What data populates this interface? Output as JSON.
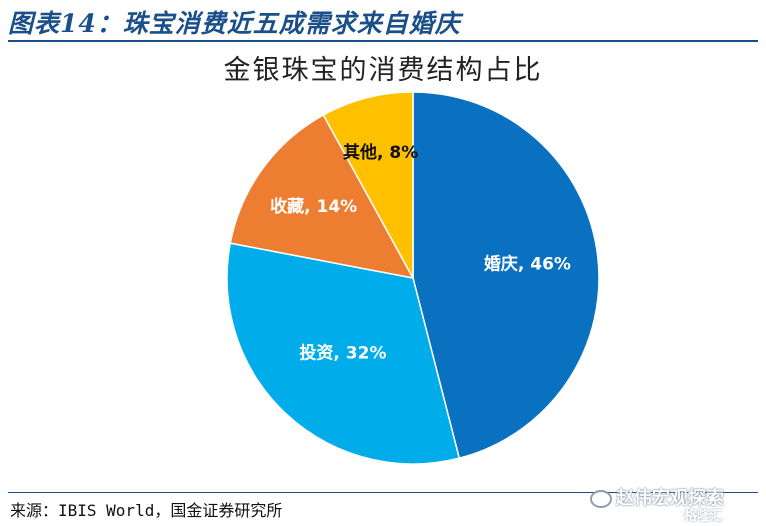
{
  "figure": {
    "title": "图表14：珠宝消费近五成需求来自婚庆",
    "source": "来源：IBIS World，国金证券研究所"
  },
  "watermark": {
    "text": "赵伟宏观探索",
    "sub": "格隆汇"
  },
  "colors": {
    "title_blue": "#1a4f8a"
  },
  "chart_data": {
    "type": "pie",
    "title": "金银珠宝的消费结构占比",
    "slices": [
      {
        "label": "婚庆",
        "value": 46,
        "display": "婚庆, 46%",
        "color": "#0a70c0"
      },
      {
        "label": "投资",
        "value": 32,
        "display": "投资, 32%",
        "color": "#00adea"
      },
      {
        "label": "收藏",
        "value": 14,
        "display": "收藏, 14%",
        "color": "#ed7d31"
      },
      {
        "label": "其他",
        "value": 8,
        "display": "其他, 8%",
        "color": "#ffc000"
      }
    ],
    "start": "12 o'clock",
    "direction": "clockwise",
    "legend": "none"
  }
}
